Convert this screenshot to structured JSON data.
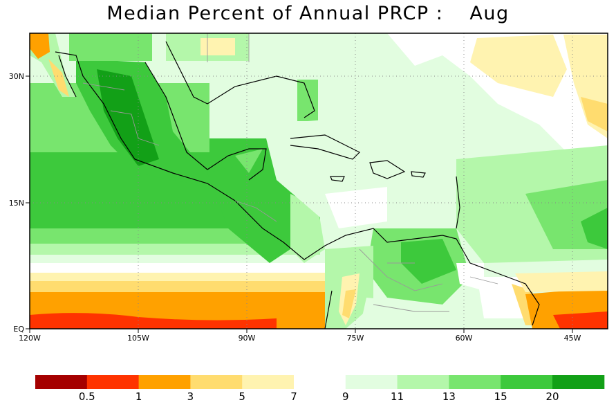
{
  "title": {
    "main": "Median Percent of Annual PRCP :",
    "month": "Aug"
  },
  "axes": {
    "x_ticks": [
      "120W",
      "105W",
      "90W",
      "75W",
      "60W",
      "45W"
    ],
    "y_ticks": [
      "30N",
      "15N",
      "EQ"
    ]
  },
  "colorbar": {
    "bins": [
      {
        "color": "#a50000"
      },
      {
        "color": "#ff3300"
      },
      {
        "color": "#ffa100"
      },
      {
        "color": "#ffdc6f"
      },
      {
        "color": "#fff3b0"
      },
      {
        "color": "#ffffff"
      },
      {
        "color": "#e2fde0"
      },
      {
        "color": "#b4f7aa"
      },
      {
        "color": "#78e56e"
      },
      {
        "color": "#3dc93c"
      },
      {
        "color": "#12a017"
      }
    ],
    "labels": [
      "0.5",
      "1",
      "3",
      "5",
      "7",
      "9",
      "11",
      "13",
      "15",
      "20"
    ]
  },
  "map_colors": {
    "land_border": "#000000",
    "state_border": "#999999",
    "grid": "#888888"
  }
}
